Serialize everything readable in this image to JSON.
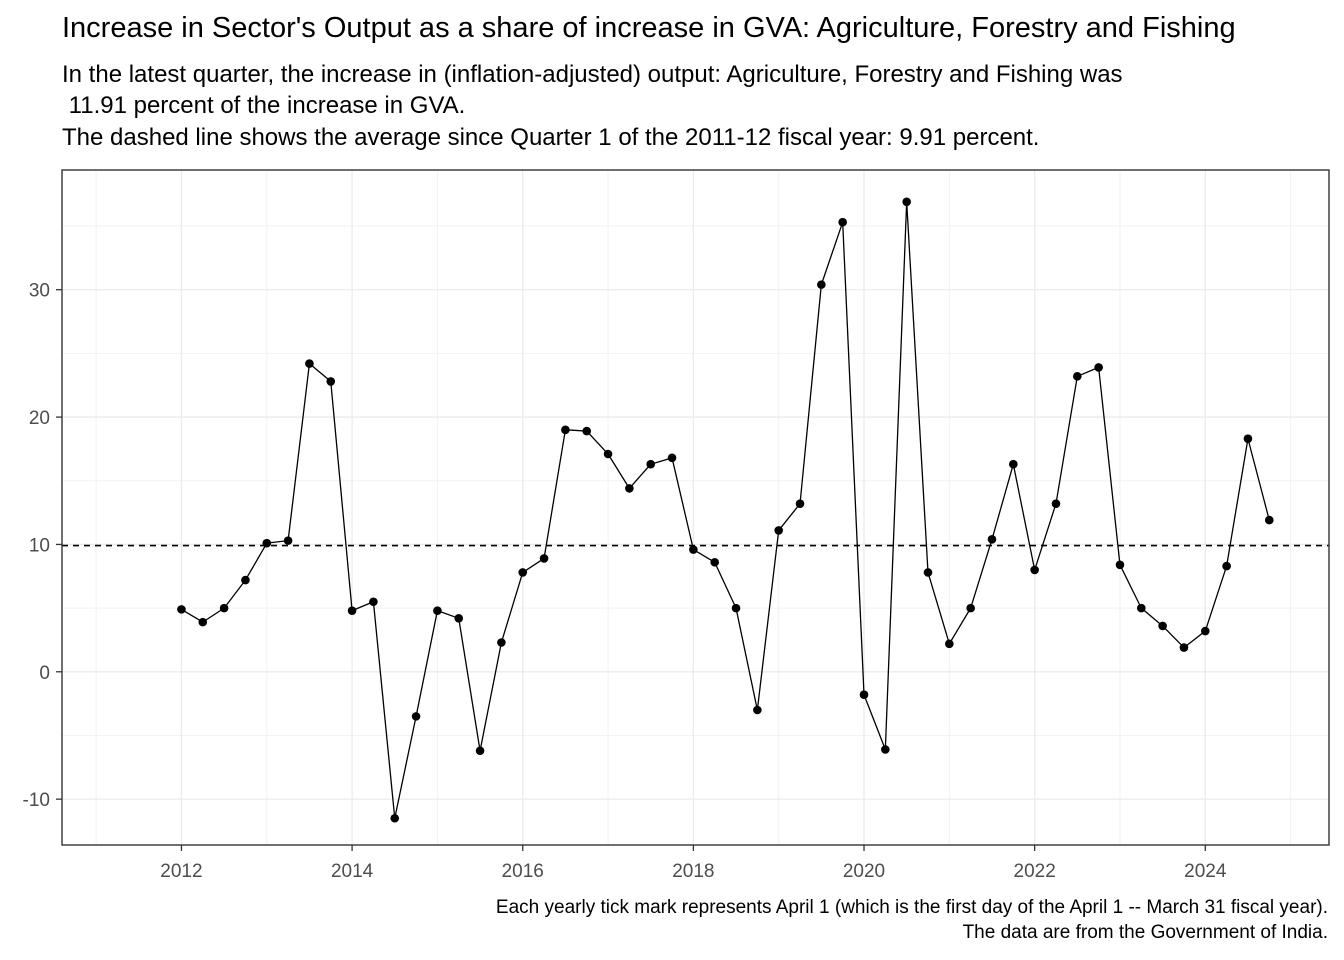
{
  "chart_data": {
    "type": "line",
    "title": "Increase in Sector's Output as a share of increase in GVA: Agriculture, Forestry and Fishing",
    "subtitle_lines": [
      "In the latest quarter, the increase in (inflation-adjusted) output: Agriculture, Forestry and Fishing was",
      " 11.91 percent of the increase in GVA.",
      "The dashed line shows the average since Quarter 1 of the 2011-12 fiscal year: 9.91 percent."
    ],
    "caption_lines": [
      "Each yearly tick mark represents April 1 (which is the first day of the April 1 -- March 31 fiscal year).",
      "The data are from the Government of India."
    ],
    "xlabel": "",
    "ylabel": "",
    "x_ticks": [
      "2012",
      "2014",
      "2016",
      "2018",
      "2020",
      "2022",
      "2024"
    ],
    "y_ticks": [
      "-10",
      "0",
      "10",
      "20",
      "30"
    ],
    "xlim": [
      2010.6,
      2025.45
    ],
    "ylim": [
      -13.6,
      39.4
    ],
    "grid": true,
    "average": 9.91,
    "series": [
      {
        "x": [
          2012.0,
          2012.25,
          2012.5,
          2012.75,
          2013.0,
          2013.25,
          2013.5,
          2013.75,
          2014.0,
          2014.25,
          2014.5,
          2014.75,
          2015.0,
          2015.25,
          2015.5,
          2015.75,
          2016.0,
          2016.25,
          2016.5,
          2016.75,
          2017.0,
          2017.25,
          2017.5,
          2017.75,
          2018.0,
          2018.25,
          2018.5,
          2018.75,
          2019.0,
          2019.25,
          2019.5,
          2019.75,
          2020.0,
          2020.25,
          2020.5,
          2020.75,
          2021.0,
          2021.25,
          2021.5,
          2021.75,
          2022.0,
          2022.25,
          2022.5,
          2022.75,
          2023.0,
          2023.25,
          2023.5,
          2023.75,
          2024.0,
          2024.25,
          2024.5,
          2024.75
        ],
        "y": [
          4.9,
          3.9,
          5.0,
          7.2,
          10.1,
          10.3,
          24.2,
          22.8,
          4.8,
          5.5,
          -11.5,
          -3.5,
          4.8,
          4.2,
          -6.2,
          2.3,
          7.8,
          8.9,
          19.0,
          18.9,
          17.1,
          14.4,
          16.3,
          16.8,
          9.6,
          8.6,
          5.0,
          -3.0,
          11.1,
          13.2,
          30.4,
          35.3,
          -1.8,
          -6.1,
          36.9,
          7.8,
          2.2,
          5.0,
          10.4,
          16.3,
          8.0,
          13.2,
          23.2,
          23.9,
          8.4,
          5.0,
          3.6,
          1.9,
          3.2,
          8.3,
          18.3,
          11.91
        ]
      }
    ]
  }
}
